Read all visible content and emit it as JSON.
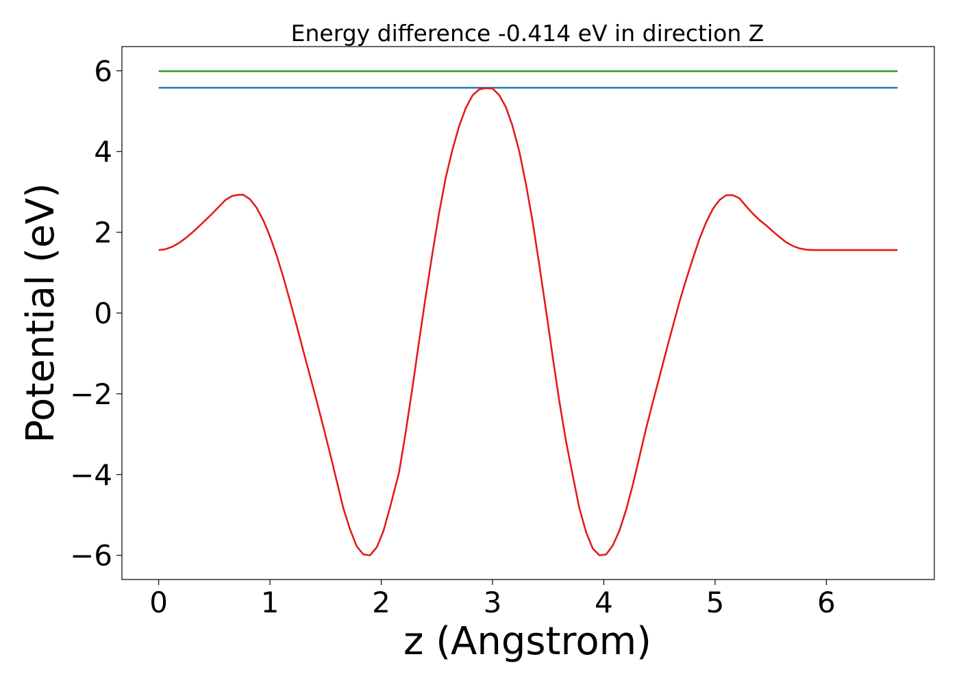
{
  "chart_data": {
    "type": "line",
    "title": "Energy difference -0.414 eV in direction Z",
    "xlabel": "z (Angstrom)",
    "ylabel": "Potential (eV)",
    "xlim": [
      -0.33,
      6.97
    ],
    "ylim": [
      -6.6,
      6.6
    ],
    "xticks": [
      0,
      1,
      2,
      3,
      4,
      5,
      6
    ],
    "yticks": [
      6,
      4,
      2,
      0,
      -2,
      -4,
      -6
    ],
    "xtick_labels": [
      "0",
      "1",
      "2",
      "3",
      "4",
      "5",
      "6"
    ],
    "ytick_labels": [
      "6",
      "4",
      "2",
      "0",
      "−2",
      "−4",
      "−6"
    ],
    "grid": false,
    "series": [
      {
        "color": "#2ca02c",
        "x": [
          0,
          6.64
        ],
        "y": [
          5.99,
          5.99
        ]
      },
      {
        "color": "#1f77b4",
        "x": [
          0,
          6.64
        ],
        "y": [
          5.58,
          5.58
        ]
      },
      {
        "color": "#e31a1c",
        "x": [
          0,
          0.06,
          0.12,
          0.18,
          0.24,
          0.3,
          0.36,
          0.42,
          0.48,
          0.54,
          0.6,
          0.66,
          0.72,
          0.76,
          0.82,
          0.88,
          0.94,
          1.0,
          1.06,
          1.12,
          1.18,
          1.24,
          1.3,
          1.36,
          1.42,
          1.48,
          1.54,
          1.6,
          1.66,
          1.72,
          1.78,
          1.84,
          1.9,
          1.96,
          2.02,
          2.08,
          2.16,
          2.22,
          2.28,
          2.34,
          2.4,
          2.46,
          2.52,
          2.58,
          2.64,
          2.7,
          2.76,
          2.82,
          2.88,
          2.94,
          3.0,
          3.06,
          3.12,
          3.18,
          3.24,
          3.3,
          3.36,
          3.42,
          3.48,
          3.54,
          3.6,
          3.66,
          3.72,
          3.78,
          3.84,
          3.9,
          3.96,
          4.02,
          4.08,
          4.14,
          4.2,
          4.26,
          4.32,
          4.38,
          4.44,
          4.5,
          4.56,
          4.62,
          4.68,
          4.74,
          4.8,
          4.86,
          4.92,
          4.98,
          5.04,
          5.1,
          5.16,
          5.22,
          5.28,
          5.34,
          5.4,
          5.46,
          5.52,
          5.58,
          5.64,
          5.7,
          5.76,
          5.82,
          5.88,
          5.94,
          6.0,
          6.06,
          6.12,
          6.18,
          6.24,
          6.3,
          6.36,
          6.42,
          6.48,
          6.54,
          6.64
        ],
        "y": [
          1.56,
          1.58,
          1.64,
          1.73,
          1.85,
          1.99,
          2.14,
          2.3,
          2.46,
          2.63,
          2.8,
          2.9,
          2.93,
          2.93,
          2.82,
          2.61,
          2.3,
          1.9,
          1.43,
          0.89,
          0.3,
          -0.31,
          -0.94,
          -1.56,
          -2.18,
          -2.82,
          -3.48,
          -4.16,
          -4.84,
          -5.36,
          -5.78,
          -5.98,
          -6.0,
          -5.8,
          -5.4,
          -4.8,
          -3.95,
          -2.95,
          -1.85,
          -0.7,
          0.42,
          1.48,
          2.48,
          3.36,
          4.05,
          4.63,
          5.08,
          5.39,
          5.54,
          5.57,
          5.56,
          5.4,
          5.1,
          4.63,
          4.01,
          3.2,
          2.27,
          1.2,
          0.08,
          -1.07,
          -2.18,
          -3.17,
          -4.01,
          -4.83,
          -5.42,
          -5.83,
          -6.0,
          -5.98,
          -5.76,
          -5.39,
          -4.88,
          -4.26,
          -3.56,
          -2.86,
          -2.21,
          -1.58,
          -0.95,
          -0.33,
          0.28,
          0.83,
          1.35,
          1.84,
          2.25,
          2.58,
          2.8,
          2.92,
          2.92,
          2.84,
          2.64,
          2.46,
          2.3,
          2.17,
          2.02,
          1.88,
          1.75,
          1.66,
          1.6,
          1.57,
          1.56,
          1.56,
          1.56,
          1.56,
          1.56,
          1.56,
          1.56,
          1.56,
          1.56,
          1.56,
          1.56,
          1.56,
          1.56
        ]
      }
    ]
  }
}
